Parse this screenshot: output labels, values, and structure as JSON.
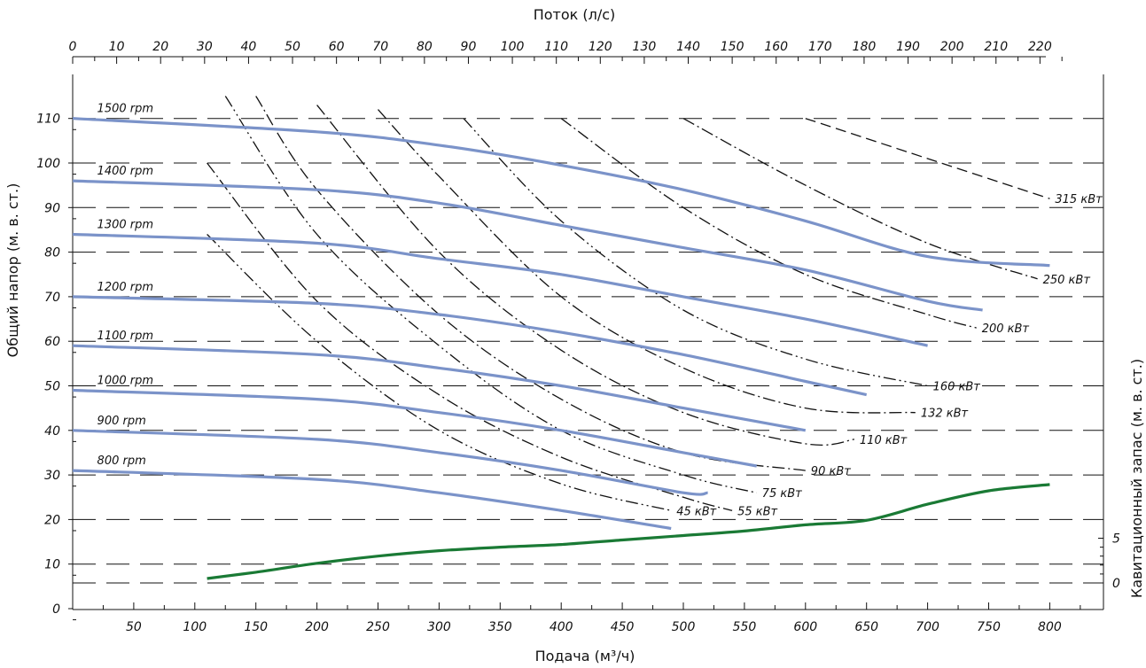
{
  "chart_data": {
    "type": "line",
    "top_axis": {
      "title": "Поток (л/с)",
      "ticks": [
        "0",
        "10",
        "20",
        "30",
        "40",
        "50",
        "60",
        "70",
        "80",
        "90",
        "100",
        "110",
        "120",
        "130",
        "140",
        "150",
        "160",
        "170",
        "180",
        "190",
        "200",
        "210",
        "220"
      ]
    },
    "bottom_axis": {
      "title": "Подача (м³/ч)",
      "ticks": [
        "50",
        "100",
        "150",
        "200",
        "250",
        "300",
        "350",
        "400",
        "450",
        "500",
        "550",
        "600",
        "650",
        "700",
        "750",
        "800"
      ]
    },
    "left_axis": {
      "title": "Общий напор (м. в. ст.)",
      "ticks": [
        "0",
        "10",
        "20",
        "30",
        "40",
        "50",
        "60",
        "70",
        "80",
        "90",
        "100",
        "110"
      ],
      "ylim": [
        0,
        110
      ]
    },
    "right_axis": {
      "title": "Кавитационный запас (м. в. ст.)",
      "ticks": [
        "0",
        "5"
      ]
    },
    "xlim": [
      0,
      850
    ],
    "grid": "dashed horizontal",
    "speed_curves": [
      {
        "name": "1500 rpm",
        "x": [
          0,
          200,
          300,
          400,
          500,
          600,
          700,
          800
        ],
        "y": [
          110,
          107,
          104,
          99.5,
          94,
          87,
          79,
          77
        ],
        "color": "#7b93c9"
      },
      {
        "name": "1400 rpm",
        "x": [
          0,
          200,
          300,
          400,
          500,
          600,
          700,
          745
        ],
        "y": [
          96,
          94,
          91,
          86,
          81,
          76,
          69,
          67
        ],
        "color": "#7b93c9"
      },
      {
        "name": "1300 rpm",
        "x": [
          0,
          200,
          300,
          400,
          500,
          600,
          700
        ],
        "y": [
          84,
          82,
          78.5,
          75,
          70,
          65,
          59
        ],
        "color": "#7b93c9"
      },
      {
        "name": "1200 rpm",
        "x": [
          0,
          200,
          300,
          400,
          500,
          600,
          650
        ],
        "y": [
          70,
          68.5,
          66,
          62,
          57,
          51,
          48
        ],
        "color": "#7b93c9"
      },
      {
        "name": "1100 rpm",
        "x": [
          0,
          200,
          300,
          400,
          500,
          600
        ],
        "y": [
          59,
          57,
          54,
          50,
          45,
          40
        ],
        "color": "#7b93c9"
      },
      {
        "name": "1000 rpm",
        "x": [
          0,
          200,
          300,
          400,
          500,
          560
        ],
        "y": [
          49,
          47,
          44,
          40,
          35,
          32
        ],
        "color": "#7b93c9"
      },
      {
        "name": "900 rpm",
        "x": [
          0,
          200,
          300,
          400,
          500,
          520
        ],
        "y": [
          40,
          38,
          35,
          31,
          26,
          26
        ],
        "color": "#7b93c9"
      },
      {
        "name": "800 rpm",
        "x": [
          0,
          200,
          300,
          400,
          490
        ],
        "y": [
          31,
          29,
          26,
          22,
          18
        ],
        "color": "#7b93c9"
      }
    ],
    "power_curves": [
      {
        "name": "45 кВт",
        "x": [
          110,
          200,
          300,
          400,
          490
        ],
        "y": [
          84,
          60,
          40,
          28,
          22
        ],
        "style": "dash-dot-dot"
      },
      {
        "name": "55 кВт",
        "x": [
          110,
          200,
          300,
          400,
          500,
          540
        ],
        "y": [
          100,
          69,
          48,
          34,
          25,
          22
        ],
        "style": "dash-dot"
      },
      {
        "name": "75 кВт",
        "x": [
          125,
          200,
          300,
          400,
          500,
          560
        ],
        "y": [
          115,
          84,
          59,
          40,
          30,
          26
        ],
        "style": "dash-dot-dot"
      },
      {
        "name": "90 кВт",
        "x": [
          150,
          200,
          300,
          400,
          500,
          600
        ],
        "y": [
          115,
          94,
          66,
          47,
          35,
          31
        ],
        "style": "dash-dot"
      },
      {
        "name": "110 кВт",
        "x": [
          200,
          300,
          400,
          500,
          600,
          640
        ],
        "y": [
          113,
          80,
          58,
          44,
          37,
          38
        ],
        "style": "dash-dot"
      },
      {
        "name": "132 кВт",
        "x": [
          250,
          300,
          400,
          500,
          600,
          690
        ],
        "y": [
          112,
          97,
          70,
          54,
          45,
          44
        ],
        "style": "dash-dot"
      },
      {
        "name": "160 кВт",
        "x": [
          320,
          400,
          500,
          600,
          700
        ],
        "y": [
          110,
          87,
          67,
          56,
          50
        ],
        "style": "dash-dot-dot"
      },
      {
        "name": "200 кВт",
        "x": [
          400,
          500,
          600,
          700,
          740
        ],
        "y": [
          110,
          90,
          75,
          66,
          63
        ],
        "style": "dash-dot"
      },
      {
        "name": "250 кВт",
        "x": [
          500,
          600,
          700,
          790
        ],
        "y": [
          110,
          95,
          82,
          74
        ],
        "style": "dash-dot"
      },
      {
        "name": "315 кВт",
        "x": [
          600,
          700,
          800
        ],
        "y": [
          110,
          101,
          92
        ],
        "style": "dashed"
      }
    ],
    "npsh_curve": {
      "x": [
        110,
        150,
        200,
        250,
        300,
        350,
        400,
        450,
        500,
        550,
        600,
        650,
        700,
        750,
        800
      ],
      "y": [
        0.5,
        1.2,
        2.2,
        3.0,
        3.6,
        4.0,
        4.3,
        4.8,
        5.3,
        5.8,
        6.5,
        7.0,
        8.8,
        10.3,
        11.0
      ],
      "color": "#1a7a35"
    }
  }
}
